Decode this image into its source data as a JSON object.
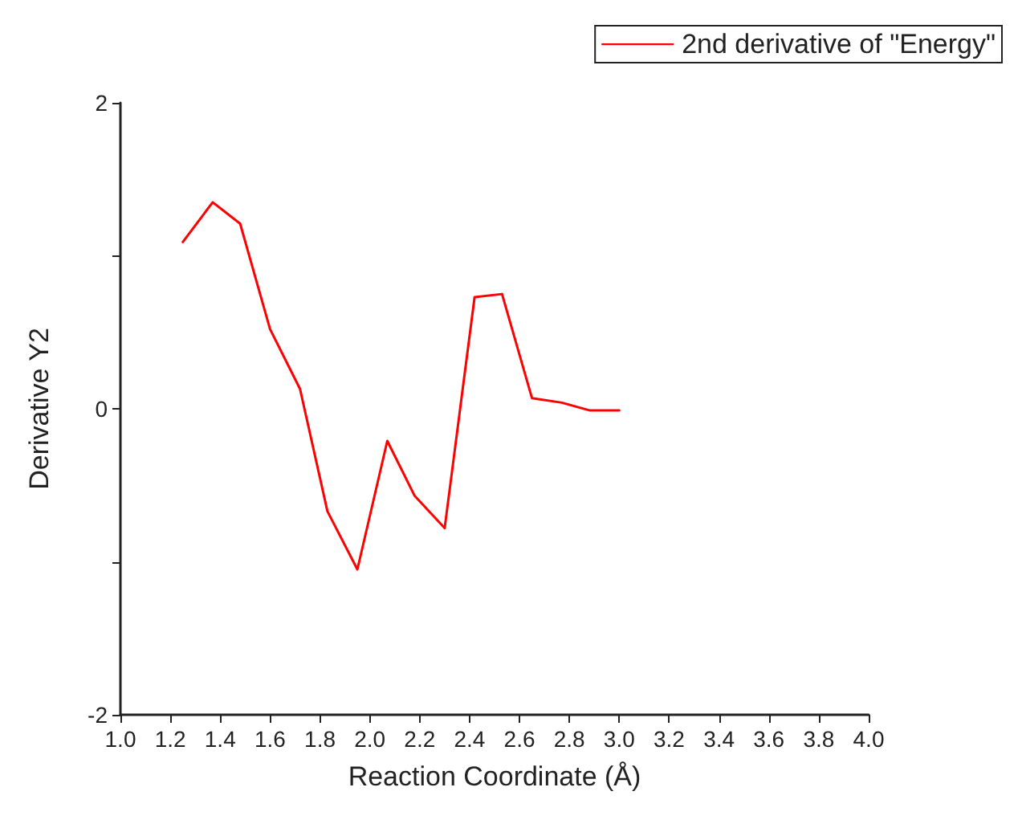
{
  "chart_data": {
    "type": "line",
    "xlabel": "Reaction Coordinate (Å)",
    "ylabel": "Derivative Y2",
    "x": [
      1.25,
      1.37,
      1.48,
      1.6,
      1.72,
      1.83,
      1.95,
      2.07,
      2.18,
      2.3,
      2.42,
      2.53,
      2.65,
      2.77,
      2.88,
      3.0
    ],
    "series": [
      {
        "name": "2nd derivative of \"Energy\"",
        "color": "#ff0000",
        "values": [
          1.09,
          1.35,
          1.21,
          0.52,
          0.13,
          -0.67,
          -1.05,
          -0.21,
          -0.57,
          -0.78,
          0.73,
          0.75,
          0.07,
          0.04,
          -0.01,
          -0.01
        ]
      }
    ],
    "xlim": [
      1.0,
      4.0
    ],
    "xticks": [
      {
        "value": 1.0,
        "label": "1.0"
      },
      {
        "value": 1.2,
        "label": "1.2"
      },
      {
        "value": 1.4,
        "label": "1.4"
      },
      {
        "value": 1.6,
        "label": "1.6"
      },
      {
        "value": 1.8,
        "label": "1.8"
      },
      {
        "value": 2.0,
        "label": "2.0"
      },
      {
        "value": 2.2,
        "label": "2.2"
      },
      {
        "value": 2.4,
        "label": "2.4"
      },
      {
        "value": 2.6,
        "label": "2.6"
      },
      {
        "value": 2.8,
        "label": "2.8"
      },
      {
        "value": 3.0,
        "label": "3.0"
      },
      {
        "value": 3.2,
        "label": "3.2"
      },
      {
        "value": 3.4,
        "label": "3.4"
      },
      {
        "value": 3.6,
        "label": "3.6"
      },
      {
        "value": 3.8,
        "label": "3.8"
      },
      {
        "value": 4.0,
        "label": "4.0"
      }
    ],
    "ylim": [
      -2,
      2
    ],
    "yticks": [
      -2,
      {
        "value": -1,
        "label": null
      },
      0,
      {
        "value": 1,
        "label": null
      },
      2
    ],
    "grid": false,
    "legend": "top right",
    "marker": "none",
    "line_style": "solid"
  }
}
